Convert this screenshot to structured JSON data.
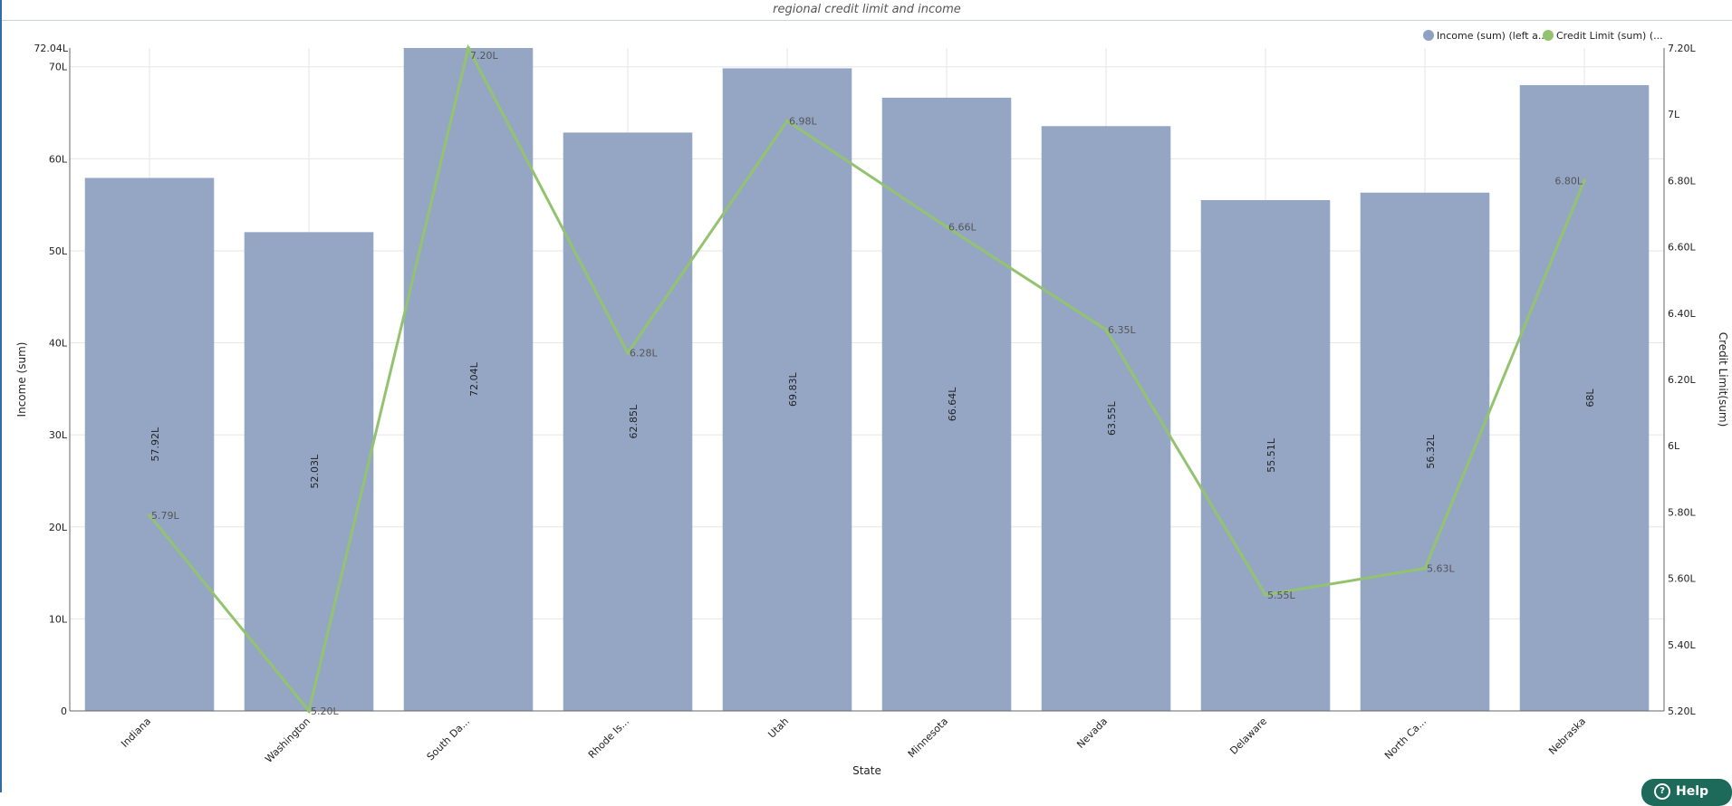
{
  "chart_title": "regional credit limit and income",
  "help_label": "Help",
  "colors": {
    "bar": "#8fa1c2",
    "line": "#94c36f",
    "grid": "#e6e6e6",
    "axis": "#666666"
  },
  "chart_data": {
    "type": "bar",
    "title": "regional credit limit and income",
    "xlabel": "State",
    "ylabel": "Income (sum)",
    "y2label": "Credit Limit(sum)",
    "categories": [
      "Indiana",
      "Washington",
      "South Da...",
      "Rhode Is...",
      "Utah",
      "Minnesota",
      "Nevada",
      "Delaware",
      "North Ca...",
      "Nebraska"
    ],
    "ylim": [
      0,
      72.04
    ],
    "y_ticks": [
      0,
      10,
      20,
      30,
      40,
      50,
      60,
      70
    ],
    "y_tick_labels": [
      "0",
      "10L",
      "20L",
      "30L",
      "40L",
      "50L",
      "60L",
      "70L"
    ],
    "y_max_label": "72.04L",
    "y2lim": [
      5.2,
      7.2
    ],
    "y2_ticks": [
      5.2,
      5.4,
      5.6,
      5.8,
      6.0,
      6.2,
      6.4,
      6.6,
      6.8,
      7.0,
      7.2
    ],
    "y2_tick_labels": [
      "5.20L",
      "5.40L",
      "5.60L",
      "5.80L",
      "6L",
      "6.20L",
      "6.40L",
      "6.60L",
      "6.80L",
      "7L",
      "7.20L"
    ],
    "legend_position": "top-right",
    "series": [
      {
        "name": "Income (sum) (left a...",
        "type": "bar",
        "axis": "left",
        "values": [
          57.92,
          52.03,
          72.04,
          62.85,
          69.83,
          66.64,
          63.55,
          55.51,
          56.32,
          68
        ],
        "labels": [
          "57.92L",
          "52.03L",
          "72.04L",
          "62.85L",
          "69.83L",
          "66.64L",
          "63.55L",
          "55.51L",
          "56.32L",
          "68L"
        ]
      },
      {
        "name": "Credit Limit (sum) (...",
        "type": "line",
        "axis": "right",
        "values": [
          5.79,
          5.2,
          7.2,
          6.28,
          6.98,
          6.66,
          6.35,
          5.55,
          5.63,
          6.8
        ],
        "labels": [
          "5.79L",
          "5.20L",
          "7.20L",
          "6.28L",
          "6.98L",
          "6.66L",
          "6.35L",
          "5.55L",
          "5.63L",
          "6.80L"
        ]
      }
    ]
  }
}
